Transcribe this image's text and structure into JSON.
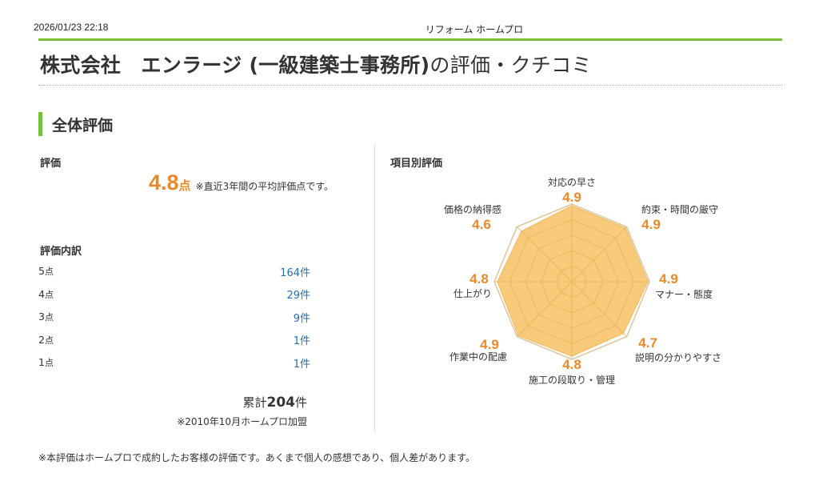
{
  "header": {
    "timestamp": "2026/01/23 22:18",
    "site_name": "リフォーム ホームプロ",
    "title_company": "株式会社　エンラージ (一級建築士事務所)",
    "title_suffix": "の評価・クチコミ"
  },
  "overall": {
    "section_title": "全体評価",
    "rating_label": "評価",
    "score": "4.8",
    "score_unit": "点",
    "score_note": "※直近3年間の平均評価点です。",
    "breakdown_label": "評価内訳",
    "breakdown": [
      {
        "stars": "5",
        "unit": "点",
        "count": "164件"
      },
      {
        "stars": "4",
        "unit": "点",
        "count": "29件"
      },
      {
        "stars": "3",
        "unit": "点",
        "count": "9件"
      },
      {
        "stars": "2",
        "unit": "点",
        "count": "1件"
      },
      {
        "stars": "1",
        "unit": "点",
        "count": "1件"
      }
    ],
    "total_prefix": "累計",
    "total_count": "204",
    "total_suffix": "件",
    "joined_note": "※2010年10月ホームプロ加盟"
  },
  "item_ratings": {
    "title": "項目別評価",
    "colors": {
      "fill": "#f7c46c",
      "grid": "#e3b35e",
      "outer": "#e3e6ee",
      "value": "#e8892a"
    }
  },
  "chart_data": {
    "type": "radar",
    "title": "項目別評価",
    "range": [
      0,
      5
    ],
    "grid_levels": 5,
    "categories": [
      "対応の早さ",
      "約束・時間の厳守",
      "マナー・態度",
      "説明の分かりやすさ",
      "施工の段取り・管理",
      "作業中の配慮",
      "仕上がり",
      "価格の納得感"
    ],
    "values": [
      4.9,
      4.9,
      4.9,
      4.7,
      4.8,
      4.9,
      4.8,
      4.6
    ],
    "value_labels": [
      "4.9",
      "4.9",
      "4.9",
      "4.7",
      "4.8",
      "4.9",
      "4.8",
      "4.6"
    ]
  },
  "footer": {
    "note": "※本評価はホームプロで成約したお客様の評価です。あくまで個人の感想であり、個人差があります。"
  }
}
